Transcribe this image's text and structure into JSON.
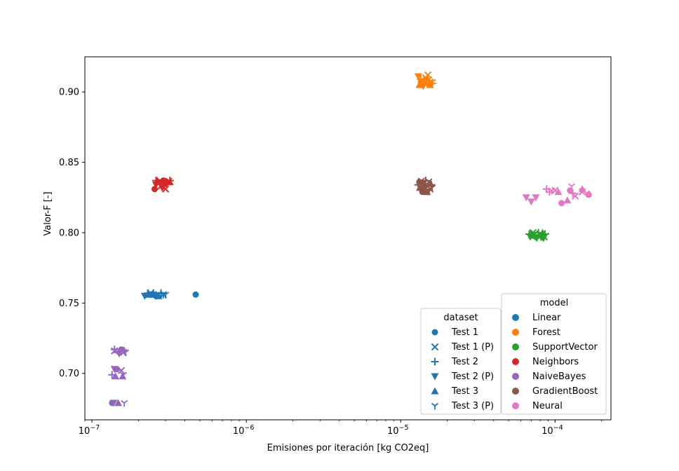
{
  "chart_data": {
    "type": "scatter",
    "xlabel": "Emisiones por iteración [kg CO2eq]",
    "ylabel": "Valor-F [-]",
    "xscale": "log",
    "xlim": [
      9e-08,
      0.00023
    ],
    "ylim": [
      0.667,
      0.925
    ],
    "x_ticks": [
      {
        "value": 1e-07,
        "base": "10",
        "exp": "−7"
      },
      {
        "value": 1e-06,
        "base": "10",
        "exp": "−6"
      },
      {
        "value": 1e-05,
        "base": "10",
        "exp": "−5"
      },
      {
        "value": 0.0001,
        "base": "10",
        "exp": "−4"
      }
    ],
    "y_ticks": [
      {
        "value": 0.7,
        "label": "0.70"
      },
      {
        "value": 0.75,
        "label": "0.75"
      },
      {
        "value": 0.8,
        "label": "0.80"
      },
      {
        "value": 0.85,
        "label": "0.85"
      },
      {
        "value": 0.9,
        "label": "0.90"
      }
    ],
    "grid": false,
    "legends": [
      {
        "title": "dataset",
        "placement": "lower-right",
        "entries": [
          {
            "label": "Test 1",
            "marker": "circle"
          },
          {
            "label": "Test 1 (P)",
            "marker": "x"
          },
          {
            "label": "Test 2",
            "marker": "plus"
          },
          {
            "label": "Test 2 (P)",
            "marker": "triangle-down"
          },
          {
            "label": "Test 3",
            "marker": "triangle-up"
          },
          {
            "label": "Test 3 (P)",
            "marker": "tri-down"
          }
        ],
        "color": "#1f77b4"
      },
      {
        "title": "model",
        "placement": "lower-right",
        "entries": [
          {
            "label": "Linear",
            "color": "#1f77b4"
          },
          {
            "label": "Forest",
            "color": "#ff7f0e"
          },
          {
            "label": "SupportVector",
            "color": "#2ca02c"
          },
          {
            "label": "Neighbors",
            "color": "#d62728"
          },
          {
            "label": "NaiveBayes",
            "color": "#9467bd"
          },
          {
            "label": "GradientBoost",
            "color": "#8c564b"
          },
          {
            "label": "Neural",
            "color": "#e377c2"
          }
        ]
      }
    ],
    "series": [
      {
        "model": "Linear",
        "color": "#1f77b4",
        "points": [
          {
            "x": 2.5e-07,
            "y": 0.756,
            "m": "circle"
          },
          {
            "x": 2.6e-07,
            "y": 0.755,
            "m": "circle"
          },
          {
            "x": 4.7e-07,
            "y": 0.756,
            "m": "circle"
          },
          {
            "x": 2.4e-07,
            "y": 0.757,
            "m": "x"
          },
          {
            "x": 2.7e-07,
            "y": 0.756,
            "m": "x"
          },
          {
            "x": 2.9e-07,
            "y": 0.756,
            "m": "x"
          },
          {
            "x": 2.3e-07,
            "y": 0.757,
            "m": "plus"
          },
          {
            "x": 2.5e-07,
            "y": 0.757,
            "m": "plus"
          },
          {
            "x": 2.8e-07,
            "y": 0.757,
            "m": "plus"
          },
          {
            "x": 2.2e-07,
            "y": 0.755,
            "m": "triangle-down"
          },
          {
            "x": 2.4e-07,
            "y": 0.756,
            "m": "triangle-down"
          },
          {
            "x": 2.6e-07,
            "y": 0.755,
            "m": "triangle-down"
          },
          {
            "x": 2.3e-07,
            "y": 0.756,
            "m": "triangle-up"
          },
          {
            "x": 2.5e-07,
            "y": 0.756,
            "m": "triangle-up"
          },
          {
            "x": 2.7e-07,
            "y": 0.755,
            "m": "triangle-up"
          },
          {
            "x": 2.6e-07,
            "y": 0.756,
            "m": "tri-down"
          },
          {
            "x": 2.9e-07,
            "y": 0.756,
            "m": "tri-down"
          },
          {
            "x": 3e-07,
            "y": 0.756,
            "m": "tri-down"
          }
        ]
      },
      {
        "model": "Forest",
        "color": "#ff7f0e",
        "points": [
          {
            "x": 1.35e-05,
            "y": 0.907,
            "m": "circle"
          },
          {
            "x": 1.4e-05,
            "y": 0.906,
            "m": "circle"
          },
          {
            "x": 1.45e-05,
            "y": 0.908,
            "m": "circle"
          },
          {
            "x": 1.45e-05,
            "y": 0.91,
            "m": "x"
          },
          {
            "x": 1.5e-05,
            "y": 0.912,
            "m": "x"
          },
          {
            "x": 1.55e-05,
            "y": 0.907,
            "m": "x"
          },
          {
            "x": 1.35e-05,
            "y": 0.909,
            "m": "plus"
          },
          {
            "x": 1.5e-05,
            "y": 0.908,
            "m": "plus"
          },
          {
            "x": 1.6e-05,
            "y": 0.906,
            "m": "plus"
          },
          {
            "x": 1.3e-05,
            "y": 0.911,
            "m": "triangle-down"
          },
          {
            "x": 1.4e-05,
            "y": 0.904,
            "m": "triangle-down"
          },
          {
            "x": 1.48e-05,
            "y": 0.906,
            "m": "triangle-down"
          },
          {
            "x": 1.32e-05,
            "y": 0.905,
            "m": "triangle-up"
          },
          {
            "x": 1.42e-05,
            "y": 0.909,
            "m": "triangle-up"
          },
          {
            "x": 1.55e-05,
            "y": 0.905,
            "m": "triangle-up"
          },
          {
            "x": 1.38e-05,
            "y": 0.907,
            "m": "tri-down"
          },
          {
            "x": 1.52e-05,
            "y": 0.909,
            "m": "tri-down"
          },
          {
            "x": 1.6e-05,
            "y": 0.907,
            "m": "tri-down"
          }
        ]
      },
      {
        "model": "SupportVector",
        "color": "#2ca02c",
        "points": [
          {
            "x": 7e-05,
            "y": 0.799,
            "m": "circle"
          },
          {
            "x": 7.5e-05,
            "y": 0.797,
            "m": "circle"
          },
          {
            "x": 8.2e-05,
            "y": 0.798,
            "m": "circle"
          },
          {
            "x": 7.2e-05,
            "y": 0.8,
            "m": "x"
          },
          {
            "x": 8e-05,
            "y": 0.799,
            "m": "x"
          },
          {
            "x": 8.5e-05,
            "y": 0.797,
            "m": "x"
          },
          {
            "x": 6.8e-05,
            "y": 0.799,
            "m": "plus"
          },
          {
            "x": 7.8e-05,
            "y": 0.8,
            "m": "plus"
          },
          {
            "x": 8.6e-05,
            "y": 0.799,
            "m": "plus"
          },
          {
            "x": 6.9e-05,
            "y": 0.797,
            "m": "triangle-down"
          },
          {
            "x": 7.6e-05,
            "y": 0.796,
            "m": "triangle-down"
          },
          {
            "x": 8.4e-05,
            "y": 0.796,
            "m": "triangle-down"
          },
          {
            "x": 7.1e-05,
            "y": 0.798,
            "m": "triangle-up"
          },
          {
            "x": 7.9e-05,
            "y": 0.798,
            "m": "triangle-up"
          },
          {
            "x": 8.3e-05,
            "y": 0.8,
            "m": "triangle-up"
          },
          {
            "x": 7.3e-05,
            "y": 0.799,
            "m": "tri-down"
          },
          {
            "x": 8.1e-05,
            "y": 0.797,
            "m": "tri-down"
          },
          {
            "x": 8.7e-05,
            "y": 0.798,
            "m": "tri-down"
          }
        ]
      },
      {
        "model": "Neighbors",
        "color": "#d62728",
        "points": [
          {
            "x": 2.55e-07,
            "y": 0.831,
            "m": "circle"
          },
          {
            "x": 2.7e-07,
            "y": 0.836,
            "m": "circle"
          },
          {
            "x": 2.9e-07,
            "y": 0.837,
            "m": "circle"
          },
          {
            "x": 2.8e-07,
            "y": 0.833,
            "m": "x"
          },
          {
            "x": 3e-07,
            "y": 0.831,
            "m": "x"
          },
          {
            "x": 3.1e-07,
            "y": 0.836,
            "m": "x"
          },
          {
            "x": 2.6e-07,
            "y": 0.837,
            "m": "plus"
          },
          {
            "x": 2.9e-07,
            "y": 0.835,
            "m": "plus"
          },
          {
            "x": 3.2e-07,
            "y": 0.837,
            "m": "plus"
          },
          {
            "x": 2.6e-07,
            "y": 0.834,
            "m": "triangle-down"
          },
          {
            "x": 2.85e-07,
            "y": 0.832,
            "m": "triangle-down"
          },
          {
            "x": 3.05e-07,
            "y": 0.835,
            "m": "triangle-down"
          },
          {
            "x": 2.65e-07,
            "y": 0.837,
            "m": "triangle-up"
          },
          {
            "x": 2.95e-07,
            "y": 0.836,
            "m": "triangle-up"
          },
          {
            "x": 3.2e-07,
            "y": 0.836,
            "m": "triangle-up"
          },
          {
            "x": 2.75e-07,
            "y": 0.835,
            "m": "tri-down"
          },
          {
            "x": 3e-07,
            "y": 0.835,
            "m": "tri-down"
          },
          {
            "x": 3.15e-07,
            "y": 0.837,
            "m": "tri-down"
          }
        ]
      },
      {
        "model": "NaiveBayes",
        "color": "#9467bd",
        "points": [
          {
            "x": 1.35e-07,
            "y": 0.679,
            "m": "circle"
          },
          {
            "x": 1.45e-07,
            "y": 0.703,
            "m": "circle"
          },
          {
            "x": 1.55e-07,
            "y": 0.717,
            "m": "circle"
          },
          {
            "x": 1.4e-07,
            "y": 0.716,
            "m": "x"
          },
          {
            "x": 1.55e-07,
            "y": 0.702,
            "m": "x"
          },
          {
            "x": 1.6e-07,
            "y": 0.715,
            "m": "x"
          },
          {
            "x": 1.35e-07,
            "y": 0.699,
            "m": "plus"
          },
          {
            "x": 1.4e-07,
            "y": 0.717,
            "m": "plus"
          },
          {
            "x": 1.62e-07,
            "y": 0.716,
            "m": "plus"
          },
          {
            "x": 1.38e-07,
            "y": 0.679,
            "m": "triangle-down"
          },
          {
            "x": 1.4e-07,
            "y": 0.703,
            "m": "triangle-down"
          },
          {
            "x": 1.5e-07,
            "y": 0.714,
            "m": "triangle-down"
          },
          {
            "x": 1.48e-07,
            "y": 0.679,
            "m": "triangle-up"
          },
          {
            "x": 1.42e-07,
            "y": 0.698,
            "m": "triangle-up"
          },
          {
            "x": 1.58e-07,
            "y": 0.698,
            "m": "triangle-up"
          },
          {
            "x": 1.62e-07,
            "y": 0.679,
            "m": "tri-down"
          },
          {
            "x": 1.6e-07,
            "y": 0.699,
            "m": "tri-down"
          },
          {
            "x": 1.65e-07,
            "y": 0.715,
            "m": "tri-down"
          }
        ]
      },
      {
        "model": "GradientBoost",
        "color": "#8c564b",
        "points": [
          {
            "x": 1.32e-05,
            "y": 0.836,
            "m": "circle"
          },
          {
            "x": 1.38e-05,
            "y": 0.829,
            "m": "circle"
          },
          {
            "x": 1.42e-05,
            "y": 0.833,
            "m": "circle"
          },
          {
            "x": 1.5e-05,
            "y": 0.833,
            "m": "x"
          },
          {
            "x": 1.55e-05,
            "y": 0.831,
            "m": "x"
          },
          {
            "x": 1.52e-05,
            "y": 0.836,
            "m": "x"
          },
          {
            "x": 1.3e-05,
            "y": 0.834,
            "m": "plus"
          },
          {
            "x": 1.45e-05,
            "y": 0.837,
            "m": "plus"
          },
          {
            "x": 1.58e-05,
            "y": 0.834,
            "m": "plus"
          },
          {
            "x": 1.35e-05,
            "y": 0.831,
            "m": "triangle-down"
          },
          {
            "x": 1.4e-05,
            "y": 0.835,
            "m": "triangle-down"
          },
          {
            "x": 1.5e-05,
            "y": 0.829,
            "m": "triangle-down"
          },
          {
            "x": 1.33e-05,
            "y": 0.832,
            "m": "triangle-up"
          },
          {
            "x": 1.48e-05,
            "y": 0.829,
            "m": "triangle-up"
          },
          {
            "x": 1.56e-05,
            "y": 0.835,
            "m": "triangle-up"
          },
          {
            "x": 1.36e-05,
            "y": 0.837,
            "m": "tri-down"
          },
          {
            "x": 1.46e-05,
            "y": 0.833,
            "m": "tri-down"
          },
          {
            "x": 1.6e-05,
            "y": 0.832,
            "m": "tri-down"
          }
        ]
      },
      {
        "model": "Neural",
        "color": "#e377c2",
        "points": [
          {
            "x": 0.00011,
            "y": 0.821,
            "m": "circle"
          },
          {
            "x": 0.000125,
            "y": 0.83,
            "m": "circle"
          },
          {
            "x": 0.000165,
            "y": 0.827,
            "m": "circle"
          },
          {
            "x": 0.000135,
            "y": 0.826,
            "m": "x"
          },
          {
            "x": 0.00015,
            "y": 0.829,
            "m": "x"
          },
          {
            "x": 0.0001,
            "y": 0.83,
            "m": "x"
          },
          {
            "x": 8.8e-05,
            "y": 0.831,
            "m": "plus"
          },
          {
            "x": 9.2e-05,
            "y": 0.829,
            "m": "plus"
          },
          {
            "x": 0.00013,
            "y": 0.828,
            "m": "plus"
          },
          {
            "x": 6.5e-05,
            "y": 0.825,
            "m": "triangle-down"
          },
          {
            "x": 7e-05,
            "y": 0.822,
            "m": "triangle-down"
          },
          {
            "x": 7.5e-05,
            "y": 0.825,
            "m": "triangle-down"
          },
          {
            "x": 0.000105,
            "y": 0.829,
            "m": "triangle-up"
          },
          {
            "x": 0.00012,
            "y": 0.823,
            "m": "triangle-up"
          },
          {
            "x": 0.00015,
            "y": 0.831,
            "m": "triangle-up"
          },
          {
            "x": 9.5e-05,
            "y": 0.83,
            "m": "tri-down"
          },
          {
            "x": 0.000128,
            "y": 0.833,
            "m": "tri-down"
          },
          {
            "x": 0.00016,
            "y": 0.828,
            "m": "tri-down"
          }
        ]
      }
    ]
  }
}
